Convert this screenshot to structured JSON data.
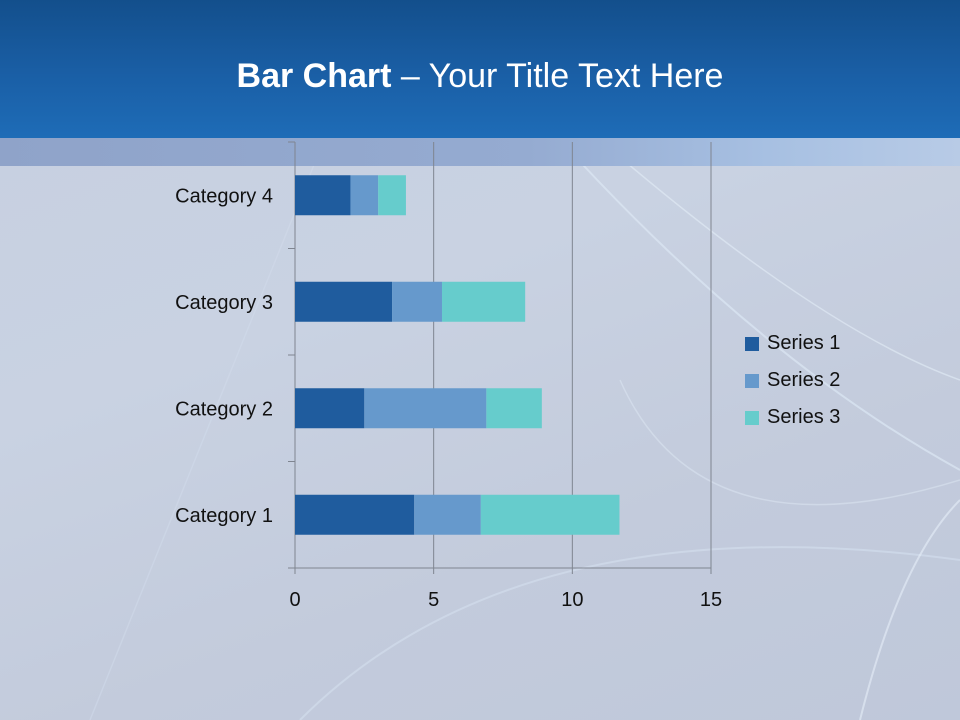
{
  "slide": {
    "title_bold": "Bar Chart",
    "title_rest": " – Your Title Text Here"
  },
  "colors": {
    "series": [
      "#1f5c9e",
      "#6699cc",
      "#66cccc"
    ],
    "grid": "#7f8590"
  },
  "chart_data": {
    "type": "bar",
    "orientation": "horizontal",
    "stacked": true,
    "categories": [
      "Category 1",
      "Category 2",
      "Category 3",
      "Category 4"
    ],
    "series": [
      {
        "name": "Series 1",
        "values": [
          4.3,
          2.5,
          3.5,
          2.0
        ]
      },
      {
        "name": "Series 2",
        "values": [
          2.4,
          4.4,
          1.8,
          1.0
        ]
      },
      {
        "name": "Series 3",
        "values": [
          5.0,
          2.0,
          3.0,
          1.0
        ]
      }
    ],
    "xlim": [
      0,
      15
    ],
    "xticks": [
      "0",
      "5",
      "10",
      "15"
    ],
    "grid": true,
    "legend": "right"
  }
}
